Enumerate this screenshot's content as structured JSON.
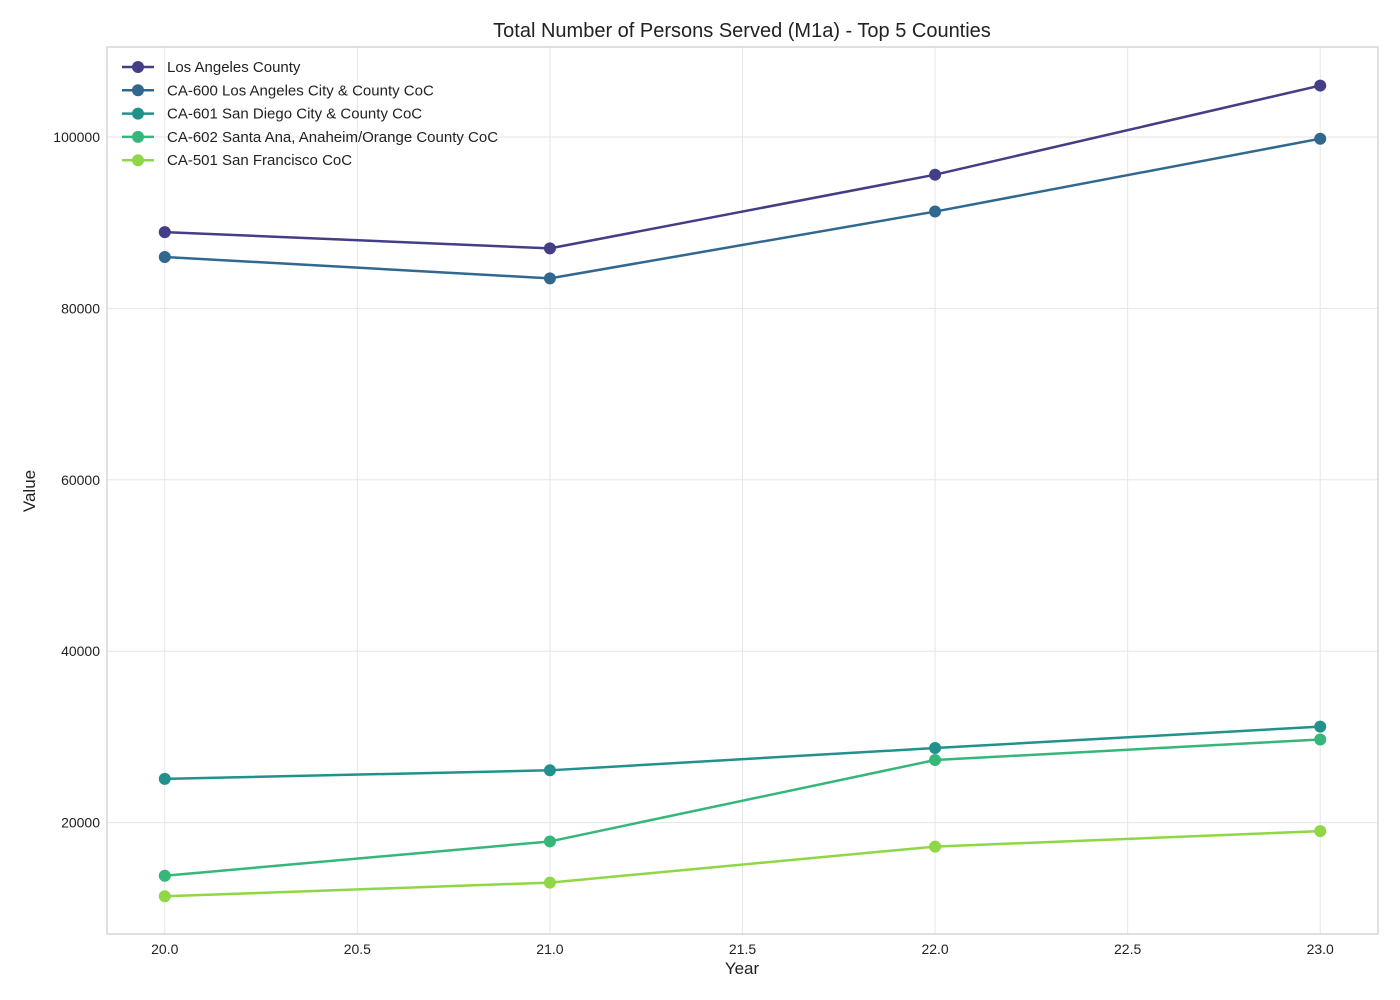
{
  "chart_data": {
    "type": "line",
    "title": "Total Number of Persons Served (M1a) - Top 5 Counties",
    "xlabel": "Year",
    "ylabel": "Value",
    "xlim": [
      19.85,
      23.15
    ],
    "ylim": [
      7000,
      110500
    ],
    "x_ticks": [
      20.0,
      20.5,
      21.0,
      21.5,
      22.0,
      22.5,
      23.0
    ],
    "x_tick_labels": [
      "20.0",
      "20.5",
      "21.0",
      "21.5",
      "22.0",
      "22.5",
      "23.0"
    ],
    "y_ticks": [
      20000,
      40000,
      60000,
      80000,
      100000
    ],
    "y_tick_labels": [
      "20000",
      "40000",
      "60000",
      "80000",
      "100000"
    ],
    "grid": true,
    "legend_position": "top-left",
    "x": [
      20,
      21,
      22,
      23
    ],
    "series": [
      {
        "name": "Los Angeles County",
        "color": "#433e85",
        "values": [
          88900,
          87000,
          95600,
          106000
        ]
      },
      {
        "name": "CA-600 Los Angeles City & County CoC",
        "color": "#31688e",
        "values": [
          86000,
          83500,
          91300,
          99800
        ]
      },
      {
        "name": "CA-601 San Diego City & County CoC",
        "color": "#21918c",
        "values": [
          25100,
          26100,
          28700,
          31200
        ]
      },
      {
        "name": "CA-602 Santa Ana, Anaheim/Orange County CoC",
        "color": "#35b779",
        "values": [
          13800,
          17800,
          27300,
          29700
        ]
      },
      {
        "name": "CA-501 San Francisco CoC",
        "color": "#8fd744",
        "values": [
          11400,
          13000,
          17200,
          19000
        ]
      }
    ]
  }
}
